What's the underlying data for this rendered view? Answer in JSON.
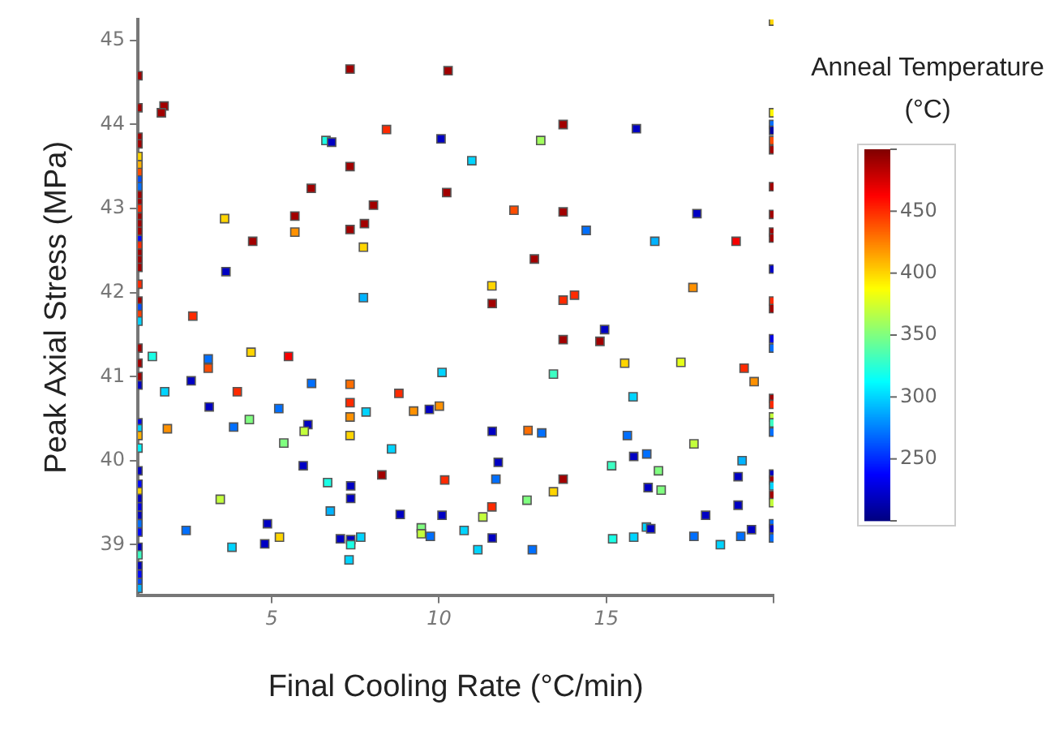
{
  "chart_data": {
    "type": "scatter",
    "xlabel": "Final Cooling Rate (°C/min)",
    "ylabel": "Peak Axial Stress (MPa)",
    "clabel": "Anneal Temperature (°C)",
    "xlim": [
      1,
      20
    ],
    "xticks": [
      5,
      10,
      15,
      {
        "value": 20,
        "label": null
      }
    ],
    "ylim": [
      38.4,
      45.25
    ],
    "yticks": [
      39,
      40,
      41,
      42,
      43,
      44,
      45
    ],
    "clim": [
      200,
      500
    ],
    "cticks": [
      {
        "value": 200,
        "label": null
      },
      250,
      300,
      350,
      400,
      450,
      {
        "value": 500,
        "label": null
      }
    ],
    "grid": false,
    "legend": false,
    "marker": "square",
    "series": [
      {
        "x": [
          1,
          1,
          1,
          1,
          1,
          1,
          1,
          1,
          1,
          1,
          1,
          1,
          1,
          1,
          1,
          1,
          1,
          1,
          1,
          1,
          1,
          1,
          1,
          1,
          1,
          1,
          1,
          1,
          1,
          1,
          1,
          1,
          1,
          1,
          1,
          1,
          1,
          1,
          1,
          1,
          1,
          1,
          1,
          1,
          1,
          1,
          1,
          20,
          20,
          20,
          20,
          20,
          20,
          20,
          20,
          20,
          20,
          20,
          20,
          20,
          20,
          20,
          20,
          20,
          20,
          20,
          20,
          20,
          20,
          20,
          20,
          20,
          20,
          20,
          20,
          1.78,
          1.7,
          3.59,
          3.63,
          2.64,
          4.43,
          5.69,
          5.69,
          6.18,
          6.62,
          6.79,
          7.34,
          7.34,
          7.34,
          7.77,
          7.74,
          8.04,
          7.74,
          8.43,
          10.06,
          10.23,
          10.27,
          10.98,
          13.04,
          13.71,
          15.9,
          12.24,
          13.71,
          14.4,
          17.71,
          16.45,
          18.88,
          12.85,
          11.58,
          11.59,
          13.71,
          14.05,
          17.59,
          14.95,
          13.71,
          14.81,
          10.09,
          13.42,
          15.55,
          17.23,
          19.12,
          19.42,
          15.8,
          10.01,
          9.71,
          11.59,
          12.66,
          13.07,
          15.63,
          17.62,
          19.06,
          11.77,
          15.82,
          16.21,
          15.16,
          16.56,
          11.7,
          10.17,
          13.71,
          18.94,
          16.25,
          16.64,
          13.42,
          12.63,
          11.58,
          11.31,
          10.09,
          17.97,
          18.94,
          19.34,
          19.02,
          18.41,
          17.62,
          16.2,
          16.33,
          15.82,
          15.19,
          12.79,
          11.59,
          11.16,
          10.75,
          1.43,
          1.8,
          1.88,
          2.59,
          3.1,
          3.1,
          3.13,
          4.38,
          3.97,
          3.86,
          4.33,
          5.5,
          6.19,
          5.21,
          5.36,
          6.08,
          5.97,
          5.94,
          7.34,
          7.34,
          7.34,
          7.34,
          7.82,
          8.8,
          9.24,
          8.58,
          8.29,
          6.67,
          7.36,
          7.36,
          6.75,
          8.84,
          9.47,
          9.47,
          9.74,
          3.46,
          2.44,
          3.81,
          4.87,
          4.79,
          5.23,
          7.05,
          7.36,
          7.36,
          7.66,
          7.31
        ],
        "values": [
          44.58,
          44.2,
          43.85,
          43.77,
          43.62,
          43.52,
          43.43,
          43.34,
          43.26,
          43.16,
          43.07,
          43.0,
          42.9,
          42.82,
          42.73,
          42.63,
          42.56,
          42.47,
          42.39,
          42.3,
          42.1,
          41.9,
          41.82,
          41.74,
          41.66,
          41.34,
          41.16,
          41.0,
          40.9,
          40.45,
          40.38,
          40.3,
          40.15,
          39.88,
          39.72,
          39.63,
          39.55,
          39.45,
          39.35,
          39.25,
          39.15,
          38.97,
          38.88,
          38.75,
          38.65,
          38.55,
          38.48,
          45.23,
          44.14,
          44.0,
          43.93,
          43.81,
          43.7,
          43.26,
          42.93,
          42.72,
          42.65,
          42.28,
          41.9,
          41.81,
          41.45,
          41.34,
          40.74,
          40.67,
          40.52,
          40.45,
          40.34,
          39.84,
          39.77,
          39.7,
          39.59,
          39.5,
          39.25,
          39.19,
          39.08,
          44.22,
          44.14,
          42.88,
          42.25,
          41.72,
          42.61,
          42.91,
          42.72,
          43.24,
          43.81,
          43.79,
          44.66,
          43.5,
          42.75,
          42.82,
          42.54,
          43.04,
          41.94,
          43.94,
          43.83,
          43.19,
          44.64,
          43.57,
          43.81,
          44.0,
          43.95,
          42.98,
          42.96,
          42.74,
          42.94,
          42.61,
          42.61,
          42.4,
          42.08,
          41.87,
          41.91,
          41.97,
          42.06,
          41.56,
          41.44,
          41.42,
          41.05,
          41.03,
          41.16,
          41.17,
          41.1,
          40.94,
          40.76,
          40.65,
          40.61,
          40.35,
          40.36,
          40.33,
          40.3,
          40.2,
          40.0,
          39.98,
          40.05,
          40.08,
          39.94,
          39.88,
          39.78,
          39.77,
          39.78,
          39.81,
          39.68,
          39.65,
          39.63,
          39.53,
          39.45,
          39.33,
          39.35,
          39.35,
          39.47,
          39.18,
          39.1,
          39.0,
          39.1,
          39.21,
          39.19,
          39.09,
          39.07,
          38.94,
          39.08,
          38.94,
          39.17,
          41.24,
          40.82,
          40.38,
          40.95,
          41.21,
          41.1,
          40.64,
          41.29,
          40.82,
          40.4,
          40.49,
          41.24,
          40.92,
          40.62,
          40.21,
          40.43,
          40.35,
          39.94,
          40.91,
          40.69,
          40.52,
          40.3,
          40.58,
          40.8,
          40.59,
          40.14,
          39.83,
          39.74,
          39.7,
          39.55,
          39.4,
          39.36,
          39.2,
          39.13,
          39.1,
          39.54,
          39.17,
          38.97,
          39.25,
          39.01,
          39.09,
          39.07,
          39.06,
          39.0,
          39.09,
          38.82
        ],
        "cvalues": [
          490,
          490,
          490,
          490,
          400,
          410,
          440,
          260,
          270,
          490,
          490,
          450,
          490,
          490,
          490,
          240,
          450,
          490,
          490,
          490,
          450,
          490,
          260,
          445,
          300,
          490,
          490,
          490,
          220,
          230,
          300,
          410,
          310,
          220,
          240,
          400,
          220,
          230,
          220,
          270,
          240,
          220,
          330,
          220,
          240,
          260,
          290,
          400,
          390,
          270,
          210,
          440,
          490,
          490,
          490,
          490,
          490,
          220,
          450,
          490,
          230,
          270,
          490,
          450,
          370,
          330,
          270,
          220,
          490,
          300,
          490,
          370,
          270,
          220,
          270,
          490,
          490,
          400,
          220,
          450,
          490,
          490,
          420,
          490,
          320,
          220,
          490,
          490,
          490,
          490,
          400,
          490,
          290,
          450,
          220,
          490,
          490,
          300,
          360,
          490,
          220,
          440,
          490,
          270,
          220,
          290,
          465,
          490,
          400,
          490,
          450,
          450,
          420,
          220,
          490,
          490,
          300,
          330,
          400,
          380,
          450,
          420,
          300,
          420,
          220,
          220,
          430,
          270,
          270,
          370,
          290,
          220,
          220,
          270,
          330,
          350,
          270,
          450,
          490,
          220,
          220,
          350,
          400,
          350,
          450,
          370,
          220,
          220,
          220,
          220,
          270,
          300,
          270,
          300,
          220,
          300,
          320,
          270,
          220,
          300,
          300,
          320,
          300,
          420,
          220,
          270,
          440,
          220,
          400,
          450,
          270,
          350,
          465,
          270,
          270,
          350,
          220,
          370,
          220,
          430,
          450,
          420,
          400,
          300,
          450,
          420,
          300,
          490,
          320,
          220,
          220,
          290,
          220,
          350,
          370,
          270,
          370,
          270,
          300,
          220,
          220,
          400,
          220,
          220,
          320,
          300,
          300
        ]
      }
    ]
  }
}
